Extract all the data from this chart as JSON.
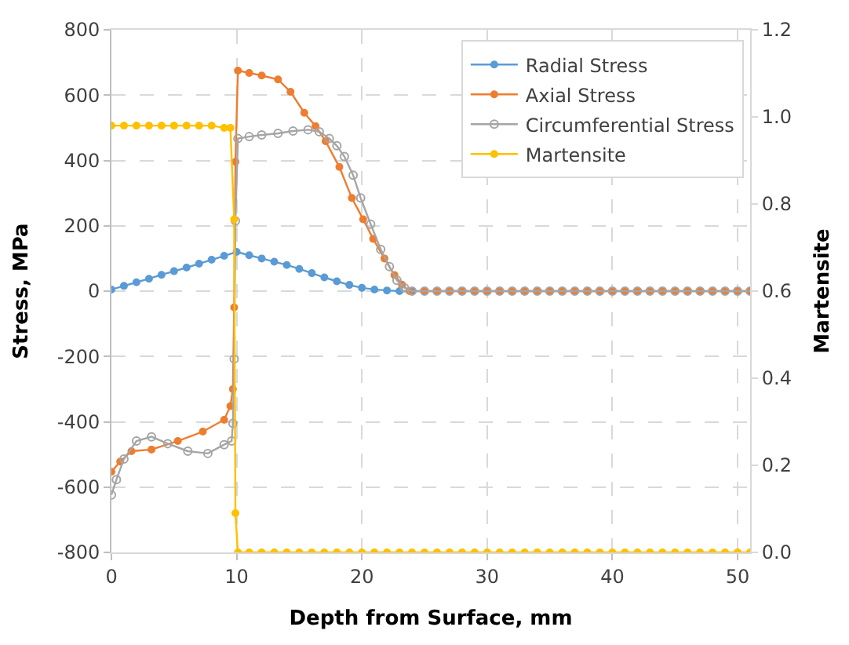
{
  "chart_data": {
    "type": "line",
    "xlabel": "Depth from Surface, mm",
    "ylabel": "Stress, MPa",
    "y2label": "Martensite",
    "xlim": [
      0,
      51
    ],
    "xticks": [
      0,
      10,
      20,
      30,
      40,
      50
    ],
    "ylim": [
      -800,
      800
    ],
    "yticks": [
      -800,
      -600,
      -400,
      -200,
      0,
      200,
      400,
      600,
      800
    ],
    "y2lim": [
      0,
      1.2
    ],
    "y2ticks": [
      {
        "value": 0,
        "label": "0.0"
      },
      {
        "value": 0.2,
        "label": "0.2"
      },
      {
        "value": 0.4,
        "label": "0.4"
      },
      {
        "value": 0.6,
        "label": "0.6"
      },
      {
        "value": 0.8,
        "label": "0.8"
      },
      {
        "value": 1.0,
        "label": "1.0"
      },
      {
        "value": 1.2,
        "label": "1.2"
      }
    ],
    "grid": true,
    "legend": "top right",
    "marker": "circle",
    "line_style": "solid",
    "series": [
      {
        "name": "Radial Stress",
        "color": "#5b9bd5",
        "x": [
          0,
          1,
          2,
          3,
          4,
          5,
          6,
          7,
          8,
          9,
          10,
          11,
          12,
          13,
          14,
          15,
          16,
          17,
          18,
          19,
          20,
          21,
          22,
          23,
          24
        ],
        "values": [
          5,
          16,
          27,
          38,
          50,
          61,
          72,
          84,
          96,
          108,
          120,
          110,
          100,
          90,
          80,
          68,
          55,
          42,
          30,
          19,
          10,
          5,
          2,
          0,
          0
        ]
      },
      {
        "name": "Axial Stress",
        "color": "#ed7d31",
        "x": [
          0,
          0.7,
          1.6,
          3.2,
          5.3,
          7.3,
          9,
          9.5,
          9.7,
          9.8,
          9.9,
          10.1,
          11,
          12,
          13.3,
          14.3,
          15.4,
          16.3,
          17.1,
          18.2,
          19.2,
          20.1,
          20.9,
          21.8,
          22.6,
          23.2,
          23.8,
          25,
          26,
          27,
          28,
          29,
          30,
          31,
          32,
          33,
          34,
          35,
          36,
          37,
          38,
          39,
          40,
          41,
          42,
          43,
          44,
          45,
          46,
          47,
          48,
          49,
          50,
          51
        ],
        "values": [
          -553,
          -522,
          -490,
          -485,
          -459,
          -430,
          -394,
          -352,
          -300,
          -50,
          396,
          675,
          668,
          660,
          648,
          610,
          546,
          505,
          459,
          380,
          285,
          220,
          160,
          100,
          49,
          20,
          0,
          0,
          0,
          0,
          0,
          0,
          0,
          0,
          0,
          0,
          0,
          0,
          0,
          0,
          0,
          0,
          0,
          0,
          0,
          0,
          0,
          0,
          0,
          0,
          0,
          0,
          0,
          0
        ]
      },
      {
        "name": "Circumferential Stress",
        "color": "#a5a5a5",
        "x": [
          0,
          0.4,
          1,
          2,
          3.2,
          4.5,
          6.1,
          7.7,
          9,
          9.6,
          9.7,
          9.8,
          9.9,
          10.1,
          11,
          12,
          13.3,
          14.5,
          15.7,
          16.6,
          17.4,
          18,
          18.6,
          19.3,
          19.9,
          20.7,
          21.5,
          22.2,
          22.8,
          23.4,
          24,
          25,
          26,
          27,
          28,
          29,
          30,
          31,
          32,
          33,
          34,
          35,
          36,
          37,
          38,
          39,
          40,
          41,
          42,
          43,
          44,
          45,
          46,
          47,
          48,
          49,
          50,
          51
        ],
        "values": [
          -624,
          -577,
          -514,
          -459,
          -446,
          -467,
          -490,
          -497,
          -470,
          -459,
          -405,
          -208,
          215,
          467,
          473,
          478,
          483,
          490,
          494,
          488,
          467,
          445,
          412,
          355,
          285,
          205,
          128,
          75,
          33,
          10,
          0,
          0,
          0,
          0,
          0,
          0,
          0,
          0,
          0,
          0,
          0,
          0,
          0,
          0,
          0,
          0,
          0,
          0,
          0,
          0,
          0,
          0,
          0,
          0,
          0,
          0,
          0,
          0
        ]
      },
      {
        "name": "Martensite",
        "color": "#ffc000",
        "axis": "y2",
        "x": [
          0,
          1,
          2,
          3,
          4,
          5,
          6,
          7,
          8,
          9,
          9.5,
          9.8,
          9.9,
          10.1,
          11,
          12,
          13,
          14,
          15,
          16,
          17,
          18,
          19,
          20,
          21,
          22,
          23,
          24,
          25,
          26,
          27,
          28,
          29,
          30,
          31,
          32,
          33,
          34,
          35,
          36,
          37,
          38,
          39,
          40,
          41,
          42,
          43,
          44,
          45,
          46,
          47,
          48,
          49,
          50,
          51
        ],
        "values": [
          0.98,
          0.98,
          0.98,
          0.98,
          0.98,
          0.98,
          0.98,
          0.98,
          0.98,
          0.975,
          0.975,
          0.765,
          0.09,
          0,
          0,
          0,
          0,
          0,
          0,
          0,
          0,
          0,
          0,
          0,
          0,
          0,
          0,
          0,
          0,
          0,
          0,
          0,
          0,
          0,
          0,
          0,
          0,
          0,
          0,
          0,
          0,
          0,
          0,
          0,
          0,
          0,
          0,
          0,
          0,
          0,
          0,
          0,
          0,
          0,
          0
        ]
      }
    ]
  }
}
